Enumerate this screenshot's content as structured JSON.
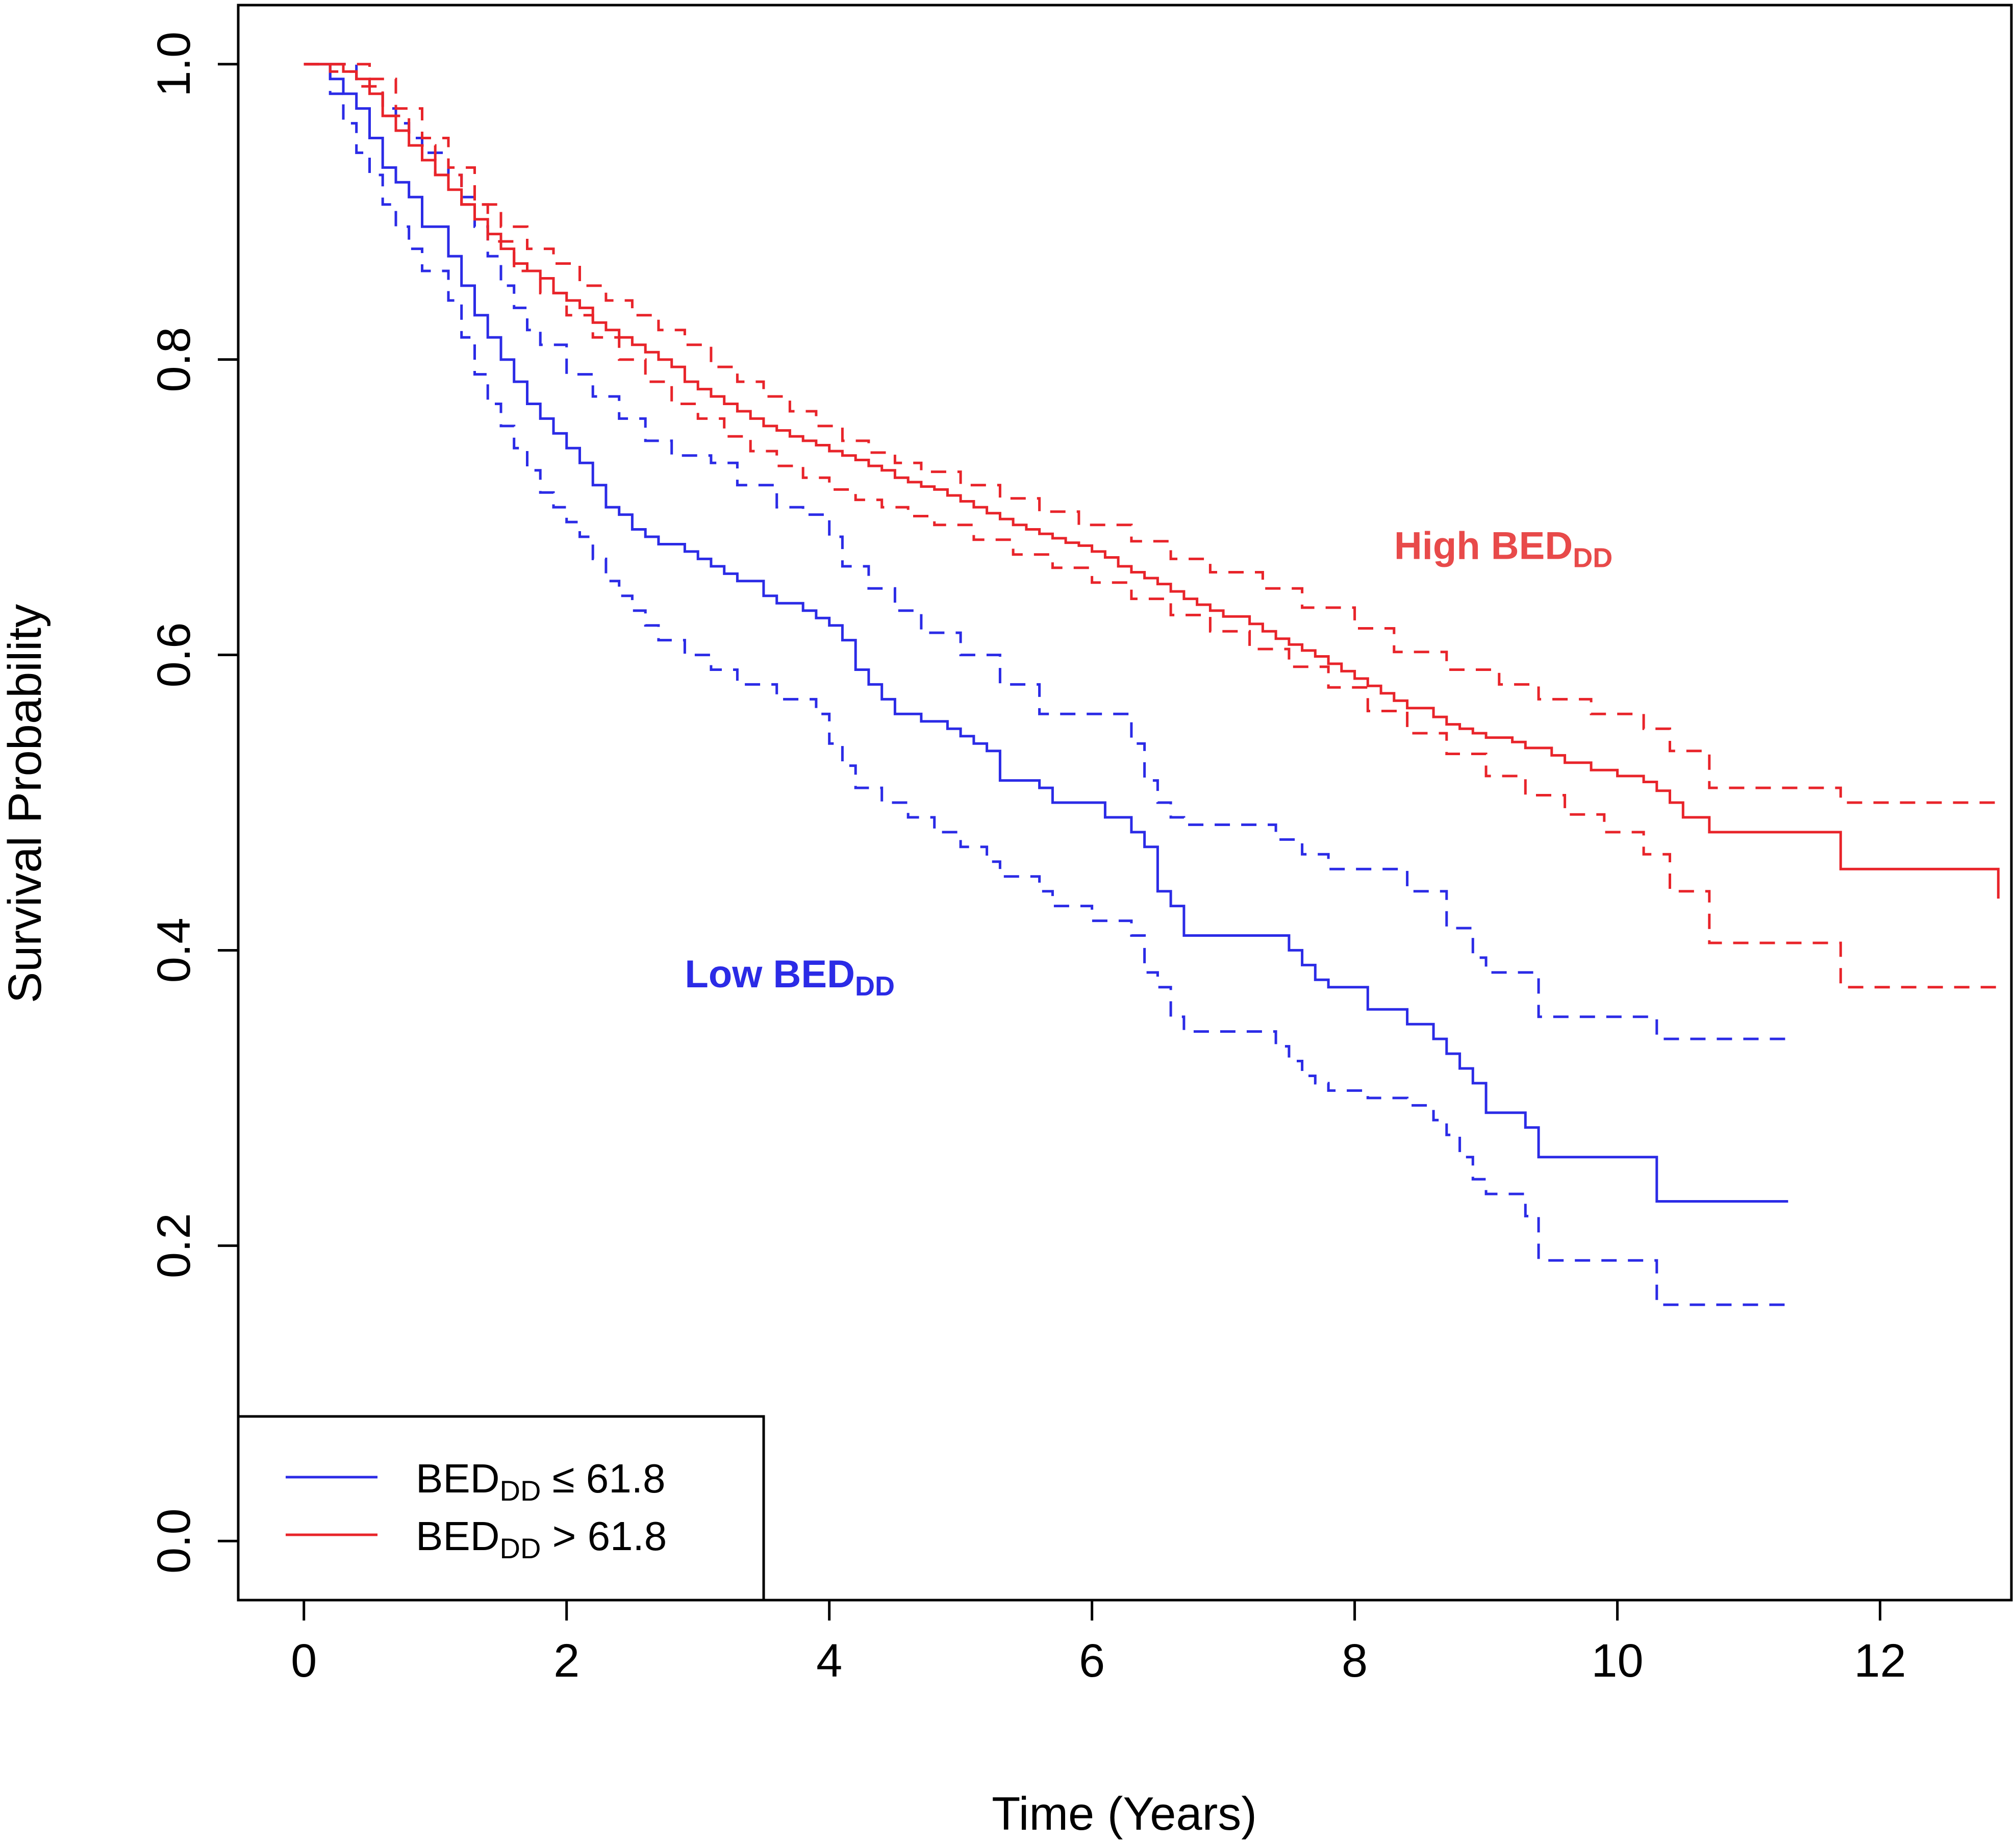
{
  "chart_data": {
    "type": "line",
    "step": true,
    "title": "",
    "xlabel": "Time (Years)",
    "ylabel": "Survival Probability",
    "xlim": [
      -0.5,
      13.0
    ],
    "ylim": [
      -0.04,
      1.04
    ],
    "xticks": [
      0,
      2,
      4,
      6,
      8,
      10,
      12
    ],
    "xtick_labels": [
      "0",
      "2",
      "4",
      "6",
      "8",
      "10",
      "12"
    ],
    "yticks": [
      0.0,
      0.2,
      0.4,
      0.6,
      0.8,
      1.0
    ],
    "ytick_labels": [
      "0.0",
      "0.2",
      "0.4",
      "0.6",
      "0.8",
      "1.0"
    ],
    "colors": {
      "low": "#2b2be6",
      "high": "#e8242a",
      "high_annotation": "#e84a4a",
      "axis": "#000000"
    },
    "legend": {
      "placement": "bottom-left",
      "entries": [
        {
          "base": "BED",
          "sub": "DD",
          "suffix": " ≤ 61.8",
          "color": "#2b2be6"
        },
        {
          "base": "BED",
          "sub": "DD",
          "suffix": " > 61.8",
          "color": "#e8242a"
        }
      ]
    },
    "annotations": [
      {
        "base": "High BED",
        "sub": "DD",
        "color": "#e84a4a",
        "x": 8.3,
        "y": 0.665
      },
      {
        "base": "Low BED",
        "sub": "DD",
        "color": "#2b2be6",
        "x": 2.9,
        "y": 0.375
      }
    ],
    "series": [
      {
        "name": "BEDDD ≤ 61.8",
        "group": "low",
        "style": "solid",
        "color": "#2b2be6",
        "x": [
          0,
          0.2,
          0.3,
          0.4,
          0.5,
          0.6,
          0.7,
          0.8,
          0.9,
          1.1,
          1.2,
          1.3,
          1.4,
          1.5,
          1.6,
          1.7,
          1.8,
          1.9,
          2.0,
          2.1,
          2.2,
          2.3,
          2.4,
          2.5,
          2.6,
          2.7,
          2.9,
          3.0,
          3.1,
          3.2,
          3.3,
          3.5,
          3.6,
          3.8,
          3.9,
          4.0,
          4.1,
          4.2,
          4.3,
          4.4,
          4.5,
          4.7,
          4.9,
          5.0,
          5.1,
          5.2,
          5.3,
          5.6,
          5.7,
          6.1,
          6.3,
          6.4,
          6.5,
          6.6,
          6.7,
          7.4,
          7.5,
          7.6,
          7.7,
          7.8,
          8.1,
          8.4,
          8.6,
          8.7,
          8.8,
          8.9,
          9.0,
          9.3,
          9.4,
          10.3,
          11.3
        ],
        "y": [
          1.0,
          0.99,
          0.98,
          0.97,
          0.95,
          0.93,
          0.92,
          0.91,
          0.89,
          0.87,
          0.85,
          0.83,
          0.815,
          0.8,
          0.785,
          0.77,
          0.76,
          0.75,
          0.74,
          0.73,
          0.715,
          0.7,
          0.695,
          0.685,
          0.68,
          0.675,
          0.67,
          0.665,
          0.66,
          0.655,
          0.65,
          0.64,
          0.635,
          0.63,
          0.625,
          0.62,
          0.61,
          0.59,
          0.58,
          0.57,
          0.56,
          0.555,
          0.55,
          0.545,
          0.54,
          0.535,
          0.515,
          0.51,
          0.5,
          0.49,
          0.48,
          0.47,
          0.44,
          0.43,
          0.41,
          0.41,
          0.4,
          0.39,
          0.38,
          0.375,
          0.36,
          0.35,
          0.34,
          0.33,
          0.32,
          0.31,
          0.29,
          0.28,
          0.26,
          0.23,
          0.23
        ]
      },
      {
        "name": "BEDDD ≤ 61.8 upper 95% CI",
        "group": "low",
        "style": "dashed",
        "color": "#2b2be6",
        "x": [
          0,
          0.2,
          0.3,
          0.4,
          0.5,
          0.6,
          0.7,
          0.8,
          0.9,
          1.1,
          1.2,
          1.3,
          1.4,
          1.5,
          1.6,
          1.7,
          1.8,
          2.0,
          2.2,
          2.4,
          2.6,
          2.8,
          3.1,
          3.3,
          3.6,
          3.8,
          4.0,
          4.1,
          4.3,
          4.5,
          4.7,
          5.0,
          5.3,
          5.6,
          6.3,
          6.4,
          6.5,
          6.6,
          6.7,
          7.4,
          7.6,
          7.8,
          8.4,
          8.7,
          8.9,
          9.0,
          9.4,
          10.3,
          11.3
        ],
        "y": [
          1.0,
          1.0,
          1.0,
          0.99,
          0.98,
          0.97,
          0.96,
          0.95,
          0.94,
          0.925,
          0.91,
          0.89,
          0.87,
          0.85,
          0.835,
          0.82,
          0.81,
          0.79,
          0.775,
          0.76,
          0.745,
          0.735,
          0.73,
          0.715,
          0.7,
          0.695,
          0.68,
          0.66,
          0.645,
          0.63,
          0.615,
          0.6,
          0.58,
          0.56,
          0.54,
          0.515,
          0.5,
          0.49,
          0.485,
          0.475,
          0.465,
          0.455,
          0.44,
          0.415,
          0.395,
          0.385,
          0.355,
          0.34,
          0.34
        ]
      },
      {
        "name": "BEDDD ≤ 61.8 lower 95% CI",
        "group": "low",
        "style": "dashed",
        "color": "#2b2be6",
        "x": [
          0,
          0.2,
          0.3,
          0.4,
          0.5,
          0.6,
          0.7,
          0.8,
          0.9,
          1.1,
          1.2,
          1.3,
          1.4,
          1.5,
          1.6,
          1.7,
          1.8,
          1.9,
          2.0,
          2.1,
          2.2,
          2.3,
          2.4,
          2.5,
          2.6,
          2.7,
          2.9,
          3.1,
          3.3,
          3.6,
          3.9,
          4.0,
          4.1,
          4.2,
          4.4,
          4.6,
          4.8,
          5.0,
          5.2,
          5.3,
          5.6,
          5.7,
          6.0,
          6.3,
          6.4,
          6.5,
          6.6,
          6.7,
          7.4,
          7.5,
          7.6,
          7.7,
          7.8,
          8.1,
          8.4,
          8.6,
          8.7,
          8.8,
          8.9,
          9.0,
          9.3,
          9.4,
          10.3,
          11.3
        ],
        "y": [
          1.0,
          0.98,
          0.96,
          0.94,
          0.925,
          0.905,
          0.89,
          0.875,
          0.86,
          0.84,
          0.815,
          0.79,
          0.77,
          0.755,
          0.74,
          0.725,
          0.71,
          0.7,
          0.69,
          0.68,
          0.665,
          0.65,
          0.64,
          0.63,
          0.62,
          0.61,
          0.6,
          0.59,
          0.58,
          0.57,
          0.56,
          0.54,
          0.525,
          0.51,
          0.5,
          0.49,
          0.48,
          0.47,
          0.46,
          0.45,
          0.44,
          0.43,
          0.42,
          0.41,
          0.385,
          0.375,
          0.355,
          0.345,
          0.335,
          0.325,
          0.315,
          0.31,
          0.305,
          0.3,
          0.295,
          0.285,
          0.275,
          0.26,
          0.245,
          0.235,
          0.22,
          0.19,
          0.16,
          0.16
        ]
      },
      {
        "name": "BEDDD > 61.8",
        "group": "high",
        "style": "solid",
        "color": "#e8242a",
        "x": [
          0,
          0.3,
          0.4,
          0.5,
          0.6,
          0.7,
          0.8,
          0.9,
          1.0,
          1.1,
          1.2,
          1.3,
          1.4,
          1.5,
          1.6,
          1.7,
          1.8,
          1.9,
          2.0,
          2.1,
          2.2,
          2.3,
          2.4,
          2.5,
          2.6,
          2.7,
          2.8,
          2.9,
          3.0,
          3.1,
          3.2,
          3.3,
          3.4,
          3.5,
          3.6,
          3.7,
          3.8,
          3.9,
          4.0,
          4.1,
          4.2,
          4.3,
          4.4,
          4.5,
          4.6,
          4.7,
          4.8,
          4.9,
          5.0,
          5.1,
          5.2,
          5.3,
          5.4,
          5.5,
          5.6,
          5.7,
          5.8,
          5.9,
          6.0,
          6.1,
          6.2,
          6.3,
          6.4,
          6.5,
          6.6,
          6.7,
          6.8,
          6.9,
          7.0,
          7.2,
          7.3,
          7.4,
          7.5,
          7.6,
          7.7,
          7.8,
          7.9,
          8.0,
          8.1,
          8.2,
          8.3,
          8.4,
          8.6,
          8.7,
          8.8,
          8.9,
          9.0,
          9.2,
          9.3,
          9.5,
          9.6,
          9.8,
          10.0,
          10.2,
          10.3,
          10.4,
          10.5,
          10.7,
          11.7,
          12.9
        ],
        "y": [
          1.0,
          0.995,
          0.99,
          0.98,
          0.965,
          0.955,
          0.945,
          0.935,
          0.925,
          0.915,
          0.905,
          0.895,
          0.885,
          0.875,
          0.865,
          0.86,
          0.855,
          0.845,
          0.84,
          0.835,
          0.825,
          0.82,
          0.815,
          0.81,
          0.805,
          0.8,
          0.795,
          0.785,
          0.78,
          0.775,
          0.77,
          0.765,
          0.76,
          0.755,
          0.752,
          0.748,
          0.745,
          0.742,
          0.738,
          0.735,
          0.732,
          0.728,
          0.725,
          0.72,
          0.717,
          0.714,
          0.712,
          0.708,
          0.704,
          0.7,
          0.696,
          0.692,
          0.688,
          0.685,
          0.682,
          0.679,
          0.676,
          0.674,
          0.67,
          0.666,
          0.66,
          0.656,
          0.652,
          0.648,
          0.643,
          0.638,
          0.634,
          0.63,
          0.626,
          0.621,
          0.616,
          0.611,
          0.607,
          0.603,
          0.599,
          0.594,
          0.589,
          0.584,
          0.579,
          0.574,
          0.569,
          0.564,
          0.558,
          0.553,
          0.55,
          0.547,
          0.544,
          0.541,
          0.537,
          0.532,
          0.527,
          0.522,
          0.518,
          0.514,
          0.508,
          0.5,
          0.49,
          0.48,
          0.455,
          0.435
        ]
      },
      {
        "name": "BEDDD > 61.8 upper 95% CI",
        "group": "high",
        "style": "dashed",
        "color": "#e8242a",
        "x": [
          0,
          0.3,
          0.5,
          0.7,
          0.9,
          1.1,
          1.3,
          1.5,
          1.7,
          1.9,
          2.1,
          2.3,
          2.5,
          2.7,
          2.9,
          3.1,
          3.3,
          3.5,
          3.7,
          3.9,
          4.1,
          4.3,
          4.5,
          4.7,
          5.0,
          5.3,
          5.6,
          5.9,
          6.3,
          6.6,
          6.9,
          7.3,
          7.6,
          8.0,
          8.3,
          8.7,
          9.1,
          9.4,
          9.8,
          10.2,
          10.4,
          10.7,
          11.7,
          12.9
        ],
        "y": [
          1.0,
          1.0,
          0.99,
          0.97,
          0.95,
          0.93,
          0.905,
          0.89,
          0.875,
          0.865,
          0.85,
          0.84,
          0.83,
          0.82,
          0.81,
          0.795,
          0.785,
          0.775,
          0.765,
          0.755,
          0.745,
          0.737,
          0.73,
          0.724,
          0.715,
          0.706,
          0.697,
          0.688,
          0.677,
          0.665,
          0.656,
          0.645,
          0.632,
          0.618,
          0.602,
          0.59,
          0.58,
          0.57,
          0.56,
          0.55,
          0.535,
          0.51,
          0.5,
          0.5
        ]
      },
      {
        "name": "BEDDD > 61.8 lower 95% CI",
        "group": "high",
        "style": "dashed",
        "color": "#e8242a",
        "x": [
          0,
          0.2,
          0.4,
          0.6,
          0.8,
          1.0,
          1.2,
          1.4,
          1.6,
          1.8,
          2.0,
          2.2,
          2.4,
          2.6,
          2.8,
          3.0,
          3.2,
          3.4,
          3.6,
          3.8,
          4.0,
          4.2,
          4.4,
          4.6,
          4.8,
          5.1,
          5.4,
          5.7,
          6.0,
          6.3,
          6.6,
          6.9,
          7.2,
          7.5,
          7.8,
          8.1,
          8.4,
          8.7,
          9.0,
          9.3,
          9.6,
          9.9,
          10.2,
          10.4,
          10.7,
          11.7,
          12.9
        ],
        "y": [
          1.0,
          0.995,
          0.985,
          0.965,
          0.945,
          0.925,
          0.905,
          0.88,
          0.86,
          0.845,
          0.83,
          0.815,
          0.8,
          0.785,
          0.77,
          0.76,
          0.748,
          0.738,
          0.728,
          0.72,
          0.712,
          0.705,
          0.7,
          0.694,
          0.688,
          0.678,
          0.668,
          0.659,
          0.649,
          0.638,
          0.627,
          0.616,
          0.604,
          0.592,
          0.578,
          0.562,
          0.547,
          0.533,
          0.518,
          0.505,
          0.492,
          0.48,
          0.465,
          0.44,
          0.405,
          0.375,
          0.375
        ]
      }
    ]
  }
}
